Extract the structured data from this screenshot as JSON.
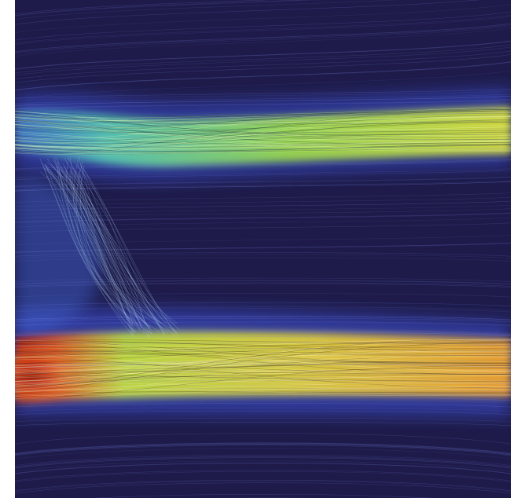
{
  "image": {
    "kind": "flow-field-streamline-visualization",
    "background_color": "#1e1b4a",
    "page_background": "#ffffff",
    "colormap": [
      "#2a1f6b",
      "#3b4fd1",
      "#4fa6e8",
      "#5fe0b8",
      "#c8e63a",
      "#f2c12a",
      "#e3561f",
      "#b01e12"
    ],
    "features": [
      {
        "name": "upper-channel",
        "peak_intensity_fraction": 0.72
      },
      {
        "name": "lower-channel",
        "peak_intensity_fraction": 0.88
      },
      {
        "name": "inlet-hotspot",
        "peak_intensity_fraction": 1.0
      },
      {
        "name": "vertical-connector",
        "peak_intensity_fraction": 0.45
      }
    ]
  }
}
